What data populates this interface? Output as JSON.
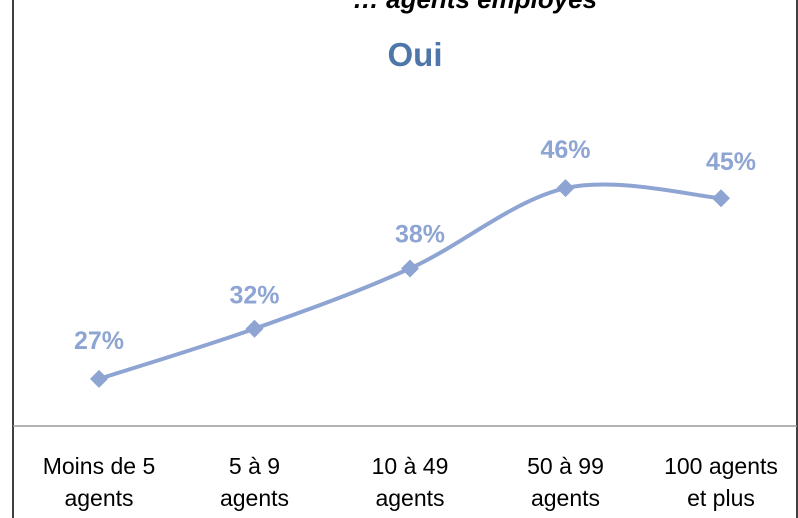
{
  "chart_data": {
    "type": "line",
    "title": "… agents employés",
    "categories": [
      [
        "Moins de 5",
        "agents"
      ],
      [
        "5 à 9",
        "agents"
      ],
      [
        "10 à 49",
        "agents"
      ],
      [
        "50 à 99",
        "agents"
      ],
      [
        "100 agents",
        "et plus"
      ]
    ],
    "series": [
      {
        "name": "Oui",
        "values": [
          27,
          32,
          38,
          46,
          45
        ],
        "labels": [
          "27%",
          "32%",
          "38%",
          "46%",
          "45%"
        ]
      }
    ],
    "ylim": [
      0,
      47
    ],
    "grid": false,
    "legend": "none",
    "smooth": true,
    "marker": "diamond",
    "colors": {
      "line": "#8EA4D2",
      "data_label": "#8EA4D2",
      "series_name": "#4F76A8",
      "axis": "#9a9a9a",
      "border": "#000000"
    }
  }
}
